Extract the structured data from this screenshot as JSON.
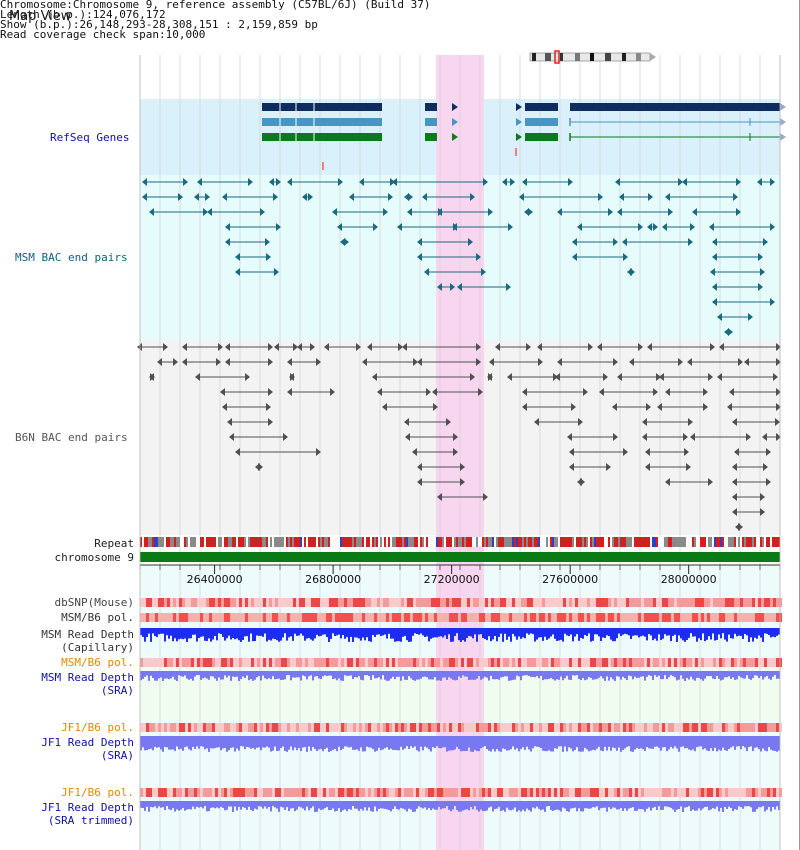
{
  "view": {
    "title": "Map View",
    "info": [
      {
        "label": "Chromosome     ",
        "value": "Chromosome 9, reference assembly (C57BL/6J) (Build 37)"
      },
      {
        "label": " Length (b.p.) ",
        "value": "124,076,172"
      },
      {
        "label": "   Show (b.p.) ",
        "value": "26,148,293-28,308,151 : 2,159,859 bp"
      },
      {
        "label": "Read coverage check span ",
        "value": "10,000"
      }
    ]
  },
  "tracks": {
    "refseq": "RefSeq Genes",
    "msm_bac": "MSM BAC end pairs",
    "b6n_bac": "B6N BAC end pairs",
    "repeat": "Repeat",
    "chromosome": "chromosome 9",
    "dbsnp": "dbSNP(Mouse)",
    "msm_b6_pol": "MSM/B6 pol.",
    "msm_read_depth_cap_1": "MSM Read Depth",
    "msm_read_depth_cap_2": "(Capillary)",
    "msm_b6_pol_sra": "MSM/B6 pol.",
    "msm_read_depth_sra_1": "MSM Read Depth",
    "msm_read_depth_sra_2": "(SRA)",
    "jf1_b6_pol": "JF1/B6 pol.",
    "jf1_read_depth_sra_1": "JF1 Read Depth",
    "jf1_read_depth_sra_2": "(SRA)",
    "jf1_b6_pol_2": "JF1/B6 pol.",
    "jf1_read_depth_trim_1": "JF1 Read Depth",
    "jf1_read_depth_trim_2": "(SRA trimmed)"
  },
  "axis": {
    "start": 26148293,
    "end": 28308151,
    "ticks": [
      "26400000",
      "26800000",
      "27200000",
      "27600000",
      "28000000"
    ],
    "tick_values": [
      26400000,
      26800000,
      27200000,
      27600000,
      28000000
    ]
  },
  "colors": {
    "refseq_bg": "#daf0fa",
    "msm_bg": "#e6fbfb",
    "b6n_bg": "#f3f3f3",
    "highlight": "#f9d6f0",
    "refseq_dark": "#0f2c5e",
    "refseq_mid": "#4a94c0",
    "refseq_green": "#0b7a1f",
    "msm_pair": "#1a6a80",
    "b6n_pair": "#505050",
    "chromosome": "#0a7a14",
    "read_depth": "#1c2cf0",
    "read_depth_light": "#7878f0",
    "polymorph": "#e84040",
    "label_blue": "#1010a8",
    "label_teal": "#106080",
    "label_orange": "#e08a00",
    "label_gray": "#333333"
  }
}
